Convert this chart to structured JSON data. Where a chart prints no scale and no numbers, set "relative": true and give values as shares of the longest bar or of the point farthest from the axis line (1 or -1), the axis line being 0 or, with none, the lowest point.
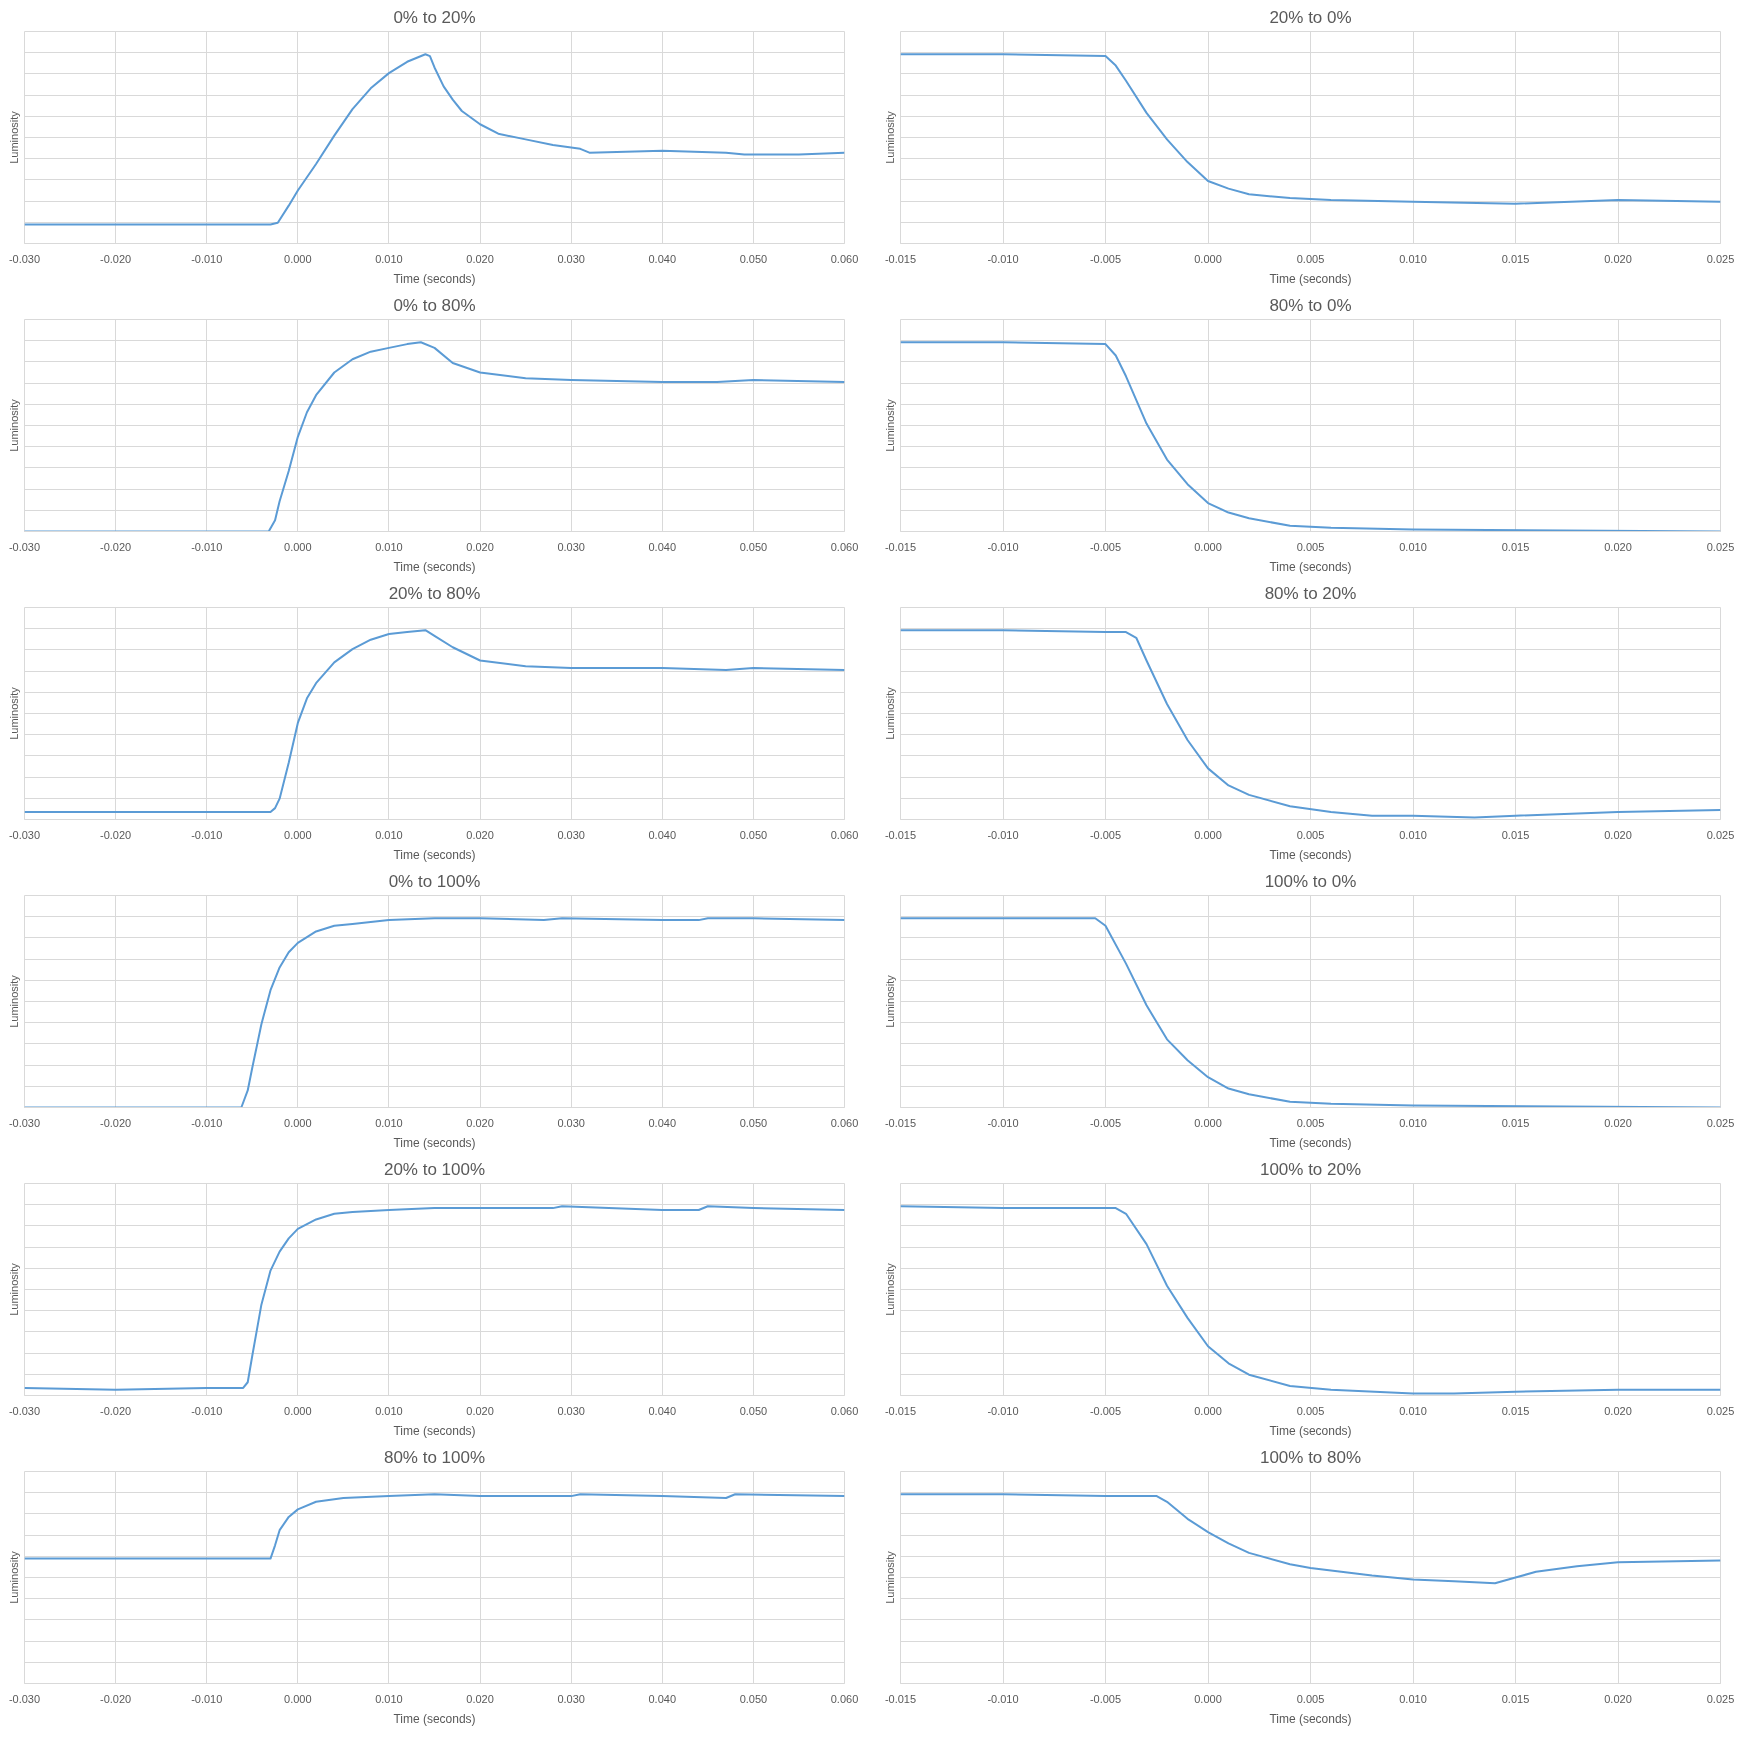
{
  "chart_data": [
    {
      "type": "line",
      "title": "0% to 20%",
      "xlabel": "Time (seconds)",
      "ylabel": "Luminosity",
      "relative": true,
      "grid": true,
      "tick_labels": "x",
      "color": "#5b9bd5",
      "xlim": [
        -0.03,
        0.06
      ],
      "xticks": [
        {
          "value": -0.03,
          "label": "-0.030"
        },
        {
          "value": -0.02,
          "label": "-0.020"
        },
        {
          "value": -0.01,
          "label": "-0.010"
        },
        {
          "value": 0,
          "label": "0.000"
        },
        {
          "value": 0.01,
          "label": "0.010"
        },
        {
          "value": 0.02,
          "label": "0.020"
        },
        {
          "value": 0.03,
          "label": "0.030"
        },
        {
          "value": 0.04,
          "label": "0.040"
        },
        {
          "value": 0.05,
          "label": "0.050"
        },
        {
          "value": 0.06,
          "label": "0.060"
        }
      ],
      "x": [
        -0.03,
        -0.02,
        -0.01,
        -0.003,
        -0.0022,
        -0.001,
        0,
        0.002,
        0.004,
        0.006,
        0.008,
        0.01,
        0.012,
        0.014,
        0.0145,
        0.015,
        0.016,
        0.017,
        0.018,
        0.02,
        0.022,
        0.025,
        0.028,
        0.031,
        0.032,
        0.04,
        0.047,
        0.049,
        0.055,
        0.06
      ],
      "values": [
        0.1,
        0.1,
        0.1,
        0.1,
        0.11,
        0.2,
        0.28,
        0.42,
        0.57,
        0.71,
        0.82,
        0.9,
        0.96,
        1.0,
        0.99,
        0.93,
        0.83,
        0.76,
        0.7,
        0.63,
        0.58,
        0.55,
        0.52,
        0.5,
        0.48,
        0.49,
        0.48,
        0.47,
        0.47,
        0.48
      ]
    },
    {
      "type": "line",
      "title": "20% to 0%",
      "xlabel": "Time (seconds)",
      "ylabel": "Luminosity",
      "relative": true,
      "grid": true,
      "tick_labels": "x",
      "color": "#5b9bd5",
      "xlim": [
        -0.015,
        0.025
      ],
      "xticks": [
        {
          "value": -0.015,
          "label": "-0.015"
        },
        {
          "value": -0.01,
          "label": "-0.010"
        },
        {
          "value": -0.005,
          "label": "-0.005"
        },
        {
          "value": 0,
          "label": "0.000"
        },
        {
          "value": 0.005,
          "label": "0.005"
        },
        {
          "value": 0.01,
          "label": "0.010"
        },
        {
          "value": 0.015,
          "label": "0.015"
        },
        {
          "value": 0.02,
          "label": "0.020"
        },
        {
          "value": 0.025,
          "label": "0.025"
        }
      ],
      "x": [
        -0.015,
        -0.01,
        -0.005,
        -0.0045,
        -0.004,
        -0.003,
        -0.002,
        -0.001,
        0,
        0.001,
        0.002,
        0.004,
        0.006,
        0.01,
        0.015,
        0.02,
        0.025
      ],
      "values": [
        1.0,
        1.0,
        0.99,
        0.94,
        0.86,
        0.69,
        0.55,
        0.43,
        0.33,
        0.29,
        0.26,
        0.24,
        0.23,
        0.22,
        0.21,
        0.23,
        0.22
      ]
    },
    {
      "type": "line",
      "title": "0% to 80%",
      "xlabel": "Time (seconds)",
      "ylabel": "Luminosity",
      "relative": true,
      "grid": true,
      "tick_labels": "x",
      "color": "#5b9bd5",
      "xlim": [
        -0.03,
        0.06
      ],
      "xticks": [
        {
          "value": -0.03,
          "label": "-0.030"
        },
        {
          "value": -0.02,
          "label": "-0.020"
        },
        {
          "value": -0.01,
          "label": "-0.010"
        },
        {
          "value": 0,
          "label": "0.000"
        },
        {
          "value": 0.01,
          "label": "0.010"
        },
        {
          "value": 0.02,
          "label": "0.020"
        },
        {
          "value": 0.03,
          "label": "0.030"
        },
        {
          "value": 0.04,
          "label": "0.040"
        },
        {
          "value": 0.05,
          "label": "0.050"
        },
        {
          "value": 0.06,
          "label": "0.060"
        }
      ],
      "x": [
        -0.03,
        -0.01,
        -0.0032,
        -0.0025,
        -0.002,
        -0.001,
        0,
        0.001,
        0.002,
        0.004,
        0.006,
        0.008,
        0.01,
        0.012,
        0.0135,
        0.015,
        0.017,
        0.02,
        0.025,
        0.03,
        0.04,
        0.046,
        0.05,
        0.06
      ],
      "values": [
        0.0,
        0.0,
        0.0,
        0.06,
        0.16,
        0.32,
        0.5,
        0.63,
        0.72,
        0.84,
        0.91,
        0.95,
        0.97,
        0.99,
        1.0,
        0.97,
        0.89,
        0.84,
        0.81,
        0.8,
        0.79,
        0.79,
        0.8,
        0.79
      ]
    },
    {
      "type": "line",
      "title": "80% to 0%",
      "xlabel": "Time (seconds)",
      "ylabel": "Luminosity",
      "relative": true,
      "grid": true,
      "tick_labels": "x",
      "color": "#5b9bd5",
      "xlim": [
        -0.015,
        0.025
      ],
      "xticks": [
        {
          "value": -0.015,
          "label": "-0.015"
        },
        {
          "value": -0.01,
          "label": "-0.010"
        },
        {
          "value": -0.005,
          "label": "-0.005"
        },
        {
          "value": 0,
          "label": "0.000"
        },
        {
          "value": 0.005,
          "label": "0.005"
        },
        {
          "value": 0.01,
          "label": "0.010"
        },
        {
          "value": 0.015,
          "label": "0.015"
        },
        {
          "value": 0.02,
          "label": "0.020"
        },
        {
          "value": 0.025,
          "label": "0.025"
        }
      ],
      "x": [
        -0.015,
        -0.01,
        -0.005,
        -0.0045,
        -0.004,
        -0.003,
        -0.002,
        -0.001,
        0,
        0.001,
        0.002,
        0.004,
        0.006,
        0.01,
        0.025
      ],
      "values": [
        1.0,
        1.0,
        0.99,
        0.93,
        0.82,
        0.57,
        0.38,
        0.25,
        0.15,
        0.1,
        0.07,
        0.03,
        0.02,
        0.01,
        0.0
      ]
    },
    {
      "type": "line",
      "title": "20% to 80%",
      "xlabel": "Time (seconds)",
      "ylabel": "Luminosity",
      "relative": true,
      "grid": true,
      "tick_labels": "x",
      "color": "#5b9bd5",
      "xlim": [
        -0.03,
        0.06
      ],
      "xticks": [
        {
          "value": -0.03,
          "label": "-0.030"
        },
        {
          "value": -0.02,
          "label": "-0.020"
        },
        {
          "value": -0.01,
          "label": "-0.010"
        },
        {
          "value": 0,
          "label": "0.000"
        },
        {
          "value": 0.01,
          "label": "0.010"
        },
        {
          "value": 0.02,
          "label": "0.020"
        },
        {
          "value": 0.03,
          "label": "0.030"
        },
        {
          "value": 0.04,
          "label": "0.040"
        },
        {
          "value": 0.05,
          "label": "0.050"
        },
        {
          "value": 0.06,
          "label": "0.060"
        }
      ],
      "x": [
        -0.03,
        -0.02,
        -0.01,
        -0.003,
        -0.0025,
        -0.002,
        -0.001,
        0,
        0.001,
        0.002,
        0.004,
        0.006,
        0.008,
        0.01,
        0.012,
        0.014,
        0.015,
        0.017,
        0.02,
        0.025,
        0.03,
        0.04,
        0.047,
        0.05,
        0.06
      ],
      "values": [
        0.04,
        0.04,
        0.04,
        0.04,
        0.06,
        0.11,
        0.3,
        0.51,
        0.64,
        0.72,
        0.83,
        0.9,
        0.95,
        0.98,
        0.99,
        1.0,
        0.97,
        0.91,
        0.84,
        0.81,
        0.8,
        0.8,
        0.79,
        0.8,
        0.79
      ]
    },
    {
      "type": "line",
      "title": "80% to 20%",
      "xlabel": "Time (seconds)",
      "ylabel": "Luminosity",
      "relative": true,
      "grid": true,
      "tick_labels": "x",
      "color": "#5b9bd5",
      "xlim": [
        -0.015,
        0.025
      ],
      "xticks": [
        {
          "value": -0.015,
          "label": "-0.015"
        },
        {
          "value": -0.01,
          "label": "-0.010"
        },
        {
          "value": -0.005,
          "label": "-0.005"
        },
        {
          "value": 0,
          "label": "0.000"
        },
        {
          "value": 0.005,
          "label": "0.005"
        },
        {
          "value": 0.01,
          "label": "0.010"
        },
        {
          "value": 0.015,
          "label": "0.015"
        },
        {
          "value": 0.02,
          "label": "0.020"
        },
        {
          "value": 0.025,
          "label": "0.025"
        }
      ],
      "x": [
        -0.015,
        -0.01,
        -0.005,
        -0.004,
        -0.0035,
        -0.003,
        -0.002,
        -0.001,
        0,
        0.001,
        0.002,
        0.004,
        0.006,
        0.008,
        0.01,
        0.013,
        0.015,
        0.02,
        0.025
      ],
      "values": [
        1.0,
        1.0,
        0.99,
        0.99,
        0.96,
        0.84,
        0.61,
        0.42,
        0.27,
        0.18,
        0.13,
        0.07,
        0.04,
        0.02,
        0.02,
        0.01,
        0.02,
        0.04,
        0.05
      ]
    },
    {
      "type": "line",
      "title": "0% to 100%",
      "xlabel": "Time (seconds)",
      "ylabel": "Luminosity",
      "relative": true,
      "grid": true,
      "tick_labels": "x",
      "color": "#5b9bd5",
      "xlim": [
        -0.03,
        0.06
      ],
      "xticks": [
        {
          "value": -0.03,
          "label": "-0.030"
        },
        {
          "value": -0.02,
          "label": "-0.020"
        },
        {
          "value": -0.01,
          "label": "-0.010"
        },
        {
          "value": 0,
          "label": "0.000"
        },
        {
          "value": 0.01,
          "label": "0.010"
        },
        {
          "value": 0.02,
          "label": "0.020"
        },
        {
          "value": 0.03,
          "label": "0.030"
        },
        {
          "value": 0.04,
          "label": "0.040"
        },
        {
          "value": 0.05,
          "label": "0.050"
        },
        {
          "value": 0.06,
          "label": "0.060"
        }
      ],
      "x": [
        -0.03,
        -0.01,
        -0.0062,
        -0.0055,
        -0.005,
        -0.004,
        -0.003,
        -0.002,
        -0.001,
        0,
        0.002,
        0.004,
        0.006,
        0.01,
        0.015,
        0.02,
        0.027,
        0.029,
        0.04,
        0.044,
        0.045,
        0.05,
        0.06
      ],
      "values": [
        0.0,
        0.0,
        0.0,
        0.09,
        0.21,
        0.44,
        0.62,
        0.74,
        0.82,
        0.87,
        0.93,
        0.96,
        0.97,
        0.99,
        1.0,
        1.0,
        0.99,
        1.0,
        0.99,
        0.99,
        1.0,
        1.0,
        0.99
      ]
    },
    {
      "type": "line",
      "title": "100% to 0%",
      "xlabel": "Time (seconds)",
      "ylabel": "Luminosity",
      "relative": true,
      "grid": true,
      "tick_labels": "x",
      "color": "#5b9bd5",
      "xlim": [
        -0.015,
        0.025
      ],
      "xticks": [
        {
          "value": -0.015,
          "label": "-0.015"
        },
        {
          "value": -0.01,
          "label": "-0.010"
        },
        {
          "value": -0.005,
          "label": "-0.005"
        },
        {
          "value": 0,
          "label": "0.000"
        },
        {
          "value": 0.005,
          "label": "0.005"
        },
        {
          "value": 0.01,
          "label": "0.010"
        },
        {
          "value": 0.015,
          "label": "0.015"
        },
        {
          "value": 0.02,
          "label": "0.020"
        },
        {
          "value": 0.025,
          "label": "0.025"
        }
      ],
      "x": [
        -0.015,
        -0.01,
        -0.0055,
        -0.005,
        -0.004,
        -0.003,
        -0.002,
        -0.001,
        0,
        0.001,
        0.002,
        0.004,
        0.006,
        0.01,
        0.025
      ],
      "values": [
        1.0,
        1.0,
        1.0,
        0.96,
        0.76,
        0.54,
        0.36,
        0.25,
        0.16,
        0.1,
        0.07,
        0.03,
        0.02,
        0.01,
        0.0
      ]
    },
    {
      "type": "line",
      "title": "20% to 100%",
      "xlabel": "Time (seconds)",
      "ylabel": "Luminosity",
      "relative": true,
      "grid": true,
      "tick_labels": "x",
      "color": "#5b9bd5",
      "xlim": [
        -0.03,
        0.06
      ],
      "xticks": [
        {
          "value": -0.03,
          "label": "-0.030"
        },
        {
          "value": -0.02,
          "label": "-0.020"
        },
        {
          "value": -0.01,
          "label": "-0.010"
        },
        {
          "value": 0,
          "label": "0.000"
        },
        {
          "value": 0.01,
          "label": "0.010"
        },
        {
          "value": 0.02,
          "label": "0.020"
        },
        {
          "value": 0.03,
          "label": "0.030"
        },
        {
          "value": 0.04,
          "label": "0.040"
        },
        {
          "value": 0.05,
          "label": "0.050"
        },
        {
          "value": 0.06,
          "label": "0.060"
        }
      ],
      "x": [
        -0.03,
        -0.02,
        -0.01,
        -0.006,
        -0.0055,
        -0.005,
        -0.004,
        -0.003,
        -0.002,
        -0.001,
        0,
        0.002,
        0.004,
        0.006,
        0.01,
        0.015,
        0.02,
        0.028,
        0.029,
        0.04,
        0.044,
        0.045,
        0.05,
        0.06
      ],
      "values": [
        0.04,
        0.03,
        0.04,
        0.04,
        0.07,
        0.21,
        0.48,
        0.66,
        0.76,
        0.83,
        0.88,
        0.93,
        0.96,
        0.97,
        0.98,
        0.99,
        0.99,
        0.99,
        1.0,
        0.98,
        0.98,
        1.0,
        0.99,
        0.98
      ]
    },
    {
      "type": "line",
      "title": "100% to 20%",
      "xlabel": "Time (seconds)",
      "ylabel": "Luminosity",
      "relative": true,
      "grid": true,
      "tick_labels": "x",
      "color": "#5b9bd5",
      "xlim": [
        -0.015,
        0.025
      ],
      "xticks": [
        {
          "value": -0.015,
          "label": "-0.015"
        },
        {
          "value": -0.01,
          "label": "-0.010"
        },
        {
          "value": -0.005,
          "label": "-0.005"
        },
        {
          "value": 0,
          "label": "0.000"
        },
        {
          "value": 0.005,
          "label": "0.005"
        },
        {
          "value": 0.01,
          "label": "0.010"
        },
        {
          "value": 0.015,
          "label": "0.015"
        },
        {
          "value": 0.02,
          "label": "0.020"
        },
        {
          "value": 0.025,
          "label": "0.025"
        }
      ],
      "x": [
        -0.015,
        -0.01,
        -0.0045,
        -0.004,
        -0.003,
        -0.002,
        -0.001,
        0,
        0.001,
        0.002,
        0.004,
        0.006,
        0.01,
        0.012,
        0.015,
        0.02,
        0.025
      ],
      "values": [
        1.0,
        0.99,
        0.99,
        0.96,
        0.8,
        0.58,
        0.41,
        0.26,
        0.17,
        0.11,
        0.05,
        0.03,
        0.01,
        0.01,
        0.02,
        0.03,
        0.03
      ]
    },
    {
      "type": "line",
      "title": "80% to 100%",
      "xlabel": "Time (seconds)",
      "ylabel": "Luminosity",
      "relative": true,
      "grid": true,
      "tick_labels": "x",
      "color": "#5b9bd5",
      "xlim": [
        -0.03,
        0.06
      ],
      "xticks": [
        {
          "value": -0.03,
          "label": "-0.030"
        },
        {
          "value": -0.02,
          "label": "-0.020"
        },
        {
          "value": -0.01,
          "label": "-0.010"
        },
        {
          "value": 0,
          "label": "0.000"
        },
        {
          "value": 0.01,
          "label": "0.010"
        },
        {
          "value": 0.02,
          "label": "0.020"
        },
        {
          "value": 0.03,
          "label": "0.030"
        },
        {
          "value": 0.04,
          "label": "0.040"
        },
        {
          "value": 0.05,
          "label": "0.050"
        },
        {
          "value": 0.06,
          "label": "0.060"
        }
      ],
      "x": [
        -0.03,
        -0.02,
        -0.015,
        -0.01,
        -0.003,
        -0.0025,
        -0.002,
        -0.001,
        0,
        0.002,
        0.005,
        0.01,
        0.015,
        0.02,
        0.03,
        0.031,
        0.04,
        0.047,
        0.048,
        0.06
      ],
      "values": [
        0.66,
        0.66,
        0.66,
        0.66,
        0.66,
        0.73,
        0.81,
        0.88,
        0.92,
        0.96,
        0.98,
        0.99,
        1.0,
        0.99,
        0.99,
        1.0,
        0.99,
        0.98,
        1.0,
        0.99
      ]
    },
    {
      "type": "line",
      "title": "100% to 80%",
      "xlabel": "Time (seconds)",
      "ylabel": "Luminosity",
      "relative": true,
      "grid": true,
      "tick_labels": "x",
      "color": "#5b9bd5",
      "xlim": [
        -0.015,
        0.025
      ],
      "xticks": [
        {
          "value": -0.015,
          "label": "-0.015"
        },
        {
          "value": -0.01,
          "label": "-0.010"
        },
        {
          "value": -0.005,
          "label": "-0.005"
        },
        {
          "value": 0,
          "label": "0.000"
        },
        {
          "value": 0.005,
          "label": "0.005"
        },
        {
          "value": 0.01,
          "label": "0.010"
        },
        {
          "value": 0.015,
          "label": "0.015"
        },
        {
          "value": 0.02,
          "label": "0.020"
        },
        {
          "value": 0.025,
          "label": "0.025"
        }
      ],
      "x": [
        -0.015,
        -0.01,
        -0.005,
        -0.0025,
        -0.002,
        -0.001,
        0,
        0.001,
        0.002,
        0.004,
        0.005,
        0.008,
        0.01,
        0.012,
        0.014,
        0.015,
        0.016,
        0.018,
        0.02,
        0.025
      ],
      "values": [
        1.0,
        1.0,
        0.99,
        0.99,
        0.96,
        0.87,
        0.8,
        0.74,
        0.69,
        0.63,
        0.61,
        0.57,
        0.55,
        0.54,
        0.53,
        0.56,
        0.59,
        0.62,
        0.64,
        0.65
      ]
    }
  ]
}
